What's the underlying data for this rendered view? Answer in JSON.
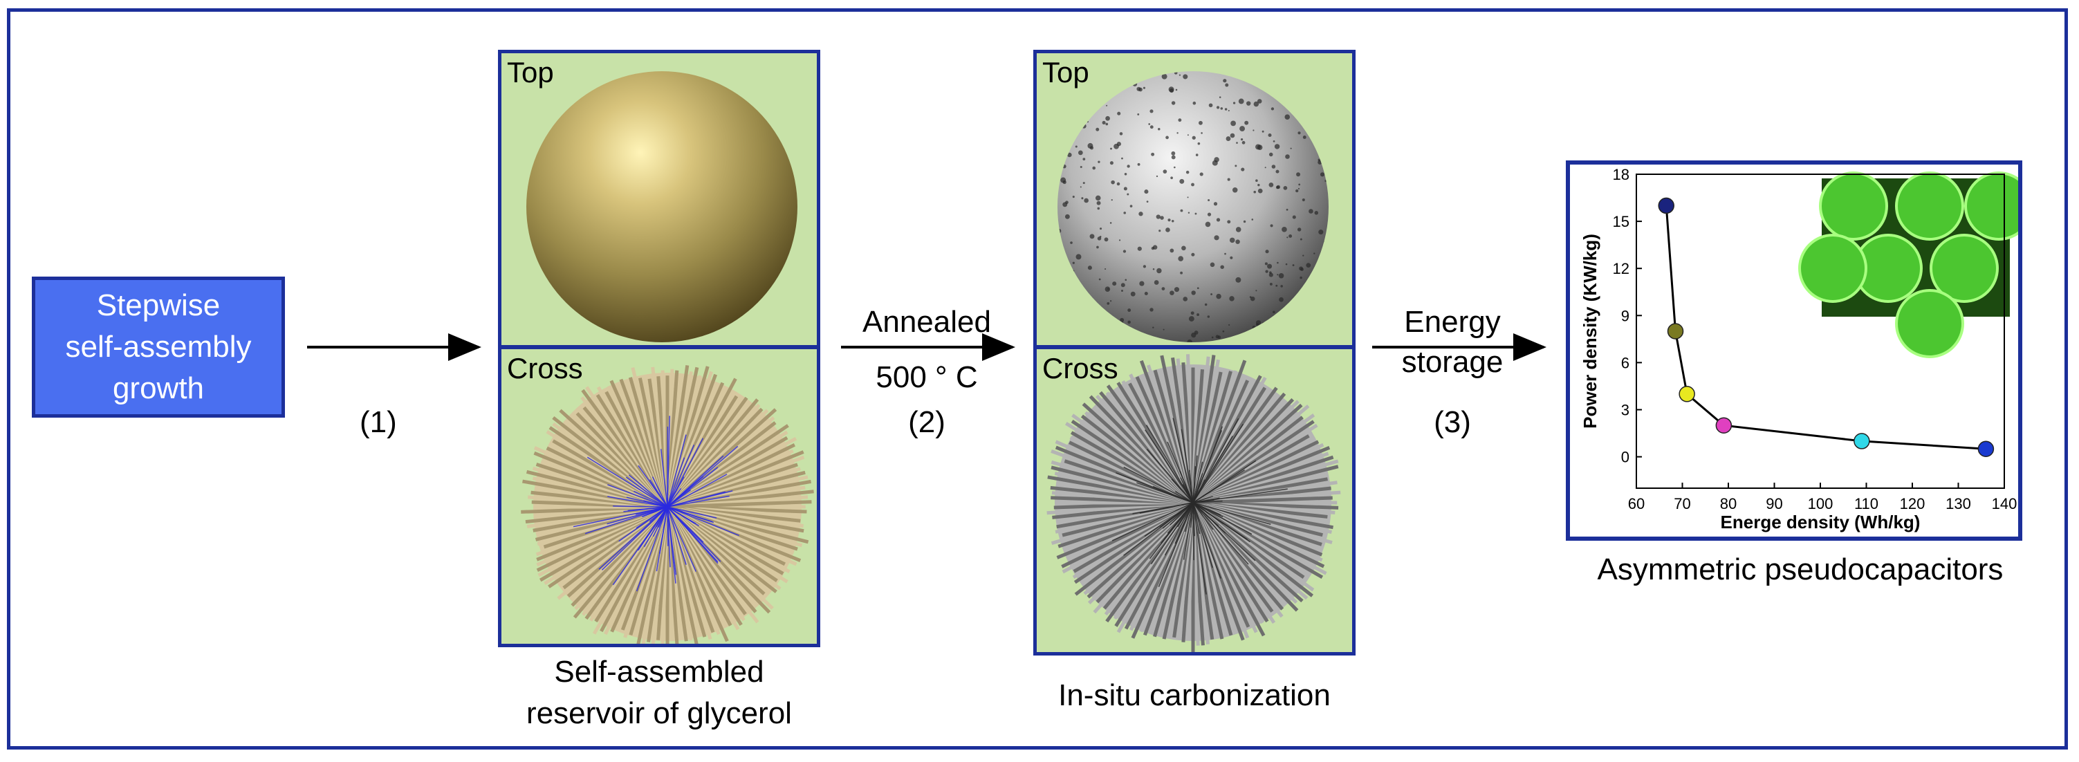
{
  "start_box": {
    "line1": "Stepwise",
    "line2": "self-assembly",
    "line3": "growth"
  },
  "steps": {
    "step1": "(1)",
    "step2_line1": "Annealed",
    "step2_line2": "500 ° C",
    "step2_num": "(2)",
    "step3_line1": "Energy",
    "step3_line2": "storage",
    "step3_num": "(3)"
  },
  "panel1": {
    "top_label": "Top",
    "cross_label": "Cross",
    "caption_line1": "Self-assembled",
    "caption_line2": "reservoir of glycerol"
  },
  "panel2": {
    "top_label": "Top",
    "cross_label": "Cross",
    "caption": "In-situ carbonization"
  },
  "chart_caption": "Asymmetric pseudocapacitors",
  "colors": {
    "frame": "#1c2f9a",
    "start_fill": "#4a6ff0",
    "panel_bg": "#c8e2a8"
  },
  "chart_data": {
    "type": "scatter",
    "xlabel": "Energe density (Wh/kg)",
    "ylabel": "Power density (KW/kg)",
    "xlim": [
      60,
      140
    ],
    "ylim": [
      -2,
      18
    ],
    "xticks": [
      60,
      70,
      80,
      90,
      100,
      110,
      120,
      130,
      140
    ],
    "yticks": [
      0,
      3,
      6,
      9,
      12,
      15,
      18
    ],
    "points": [
      {
        "x": 66.5,
        "y": 16,
        "color": "#1a237e"
      },
      {
        "x": 68.5,
        "y": 8,
        "color": "#7a7a22"
      },
      {
        "x": 71,
        "y": 4,
        "color": "#e8e820"
      },
      {
        "x": 79,
        "y": 2,
        "color": "#e040c0"
      },
      {
        "x": 109,
        "y": 1,
        "color": "#30d8e8"
      },
      {
        "x": 136,
        "y": 0.5,
        "color": "#1a3ad0"
      }
    ]
  }
}
